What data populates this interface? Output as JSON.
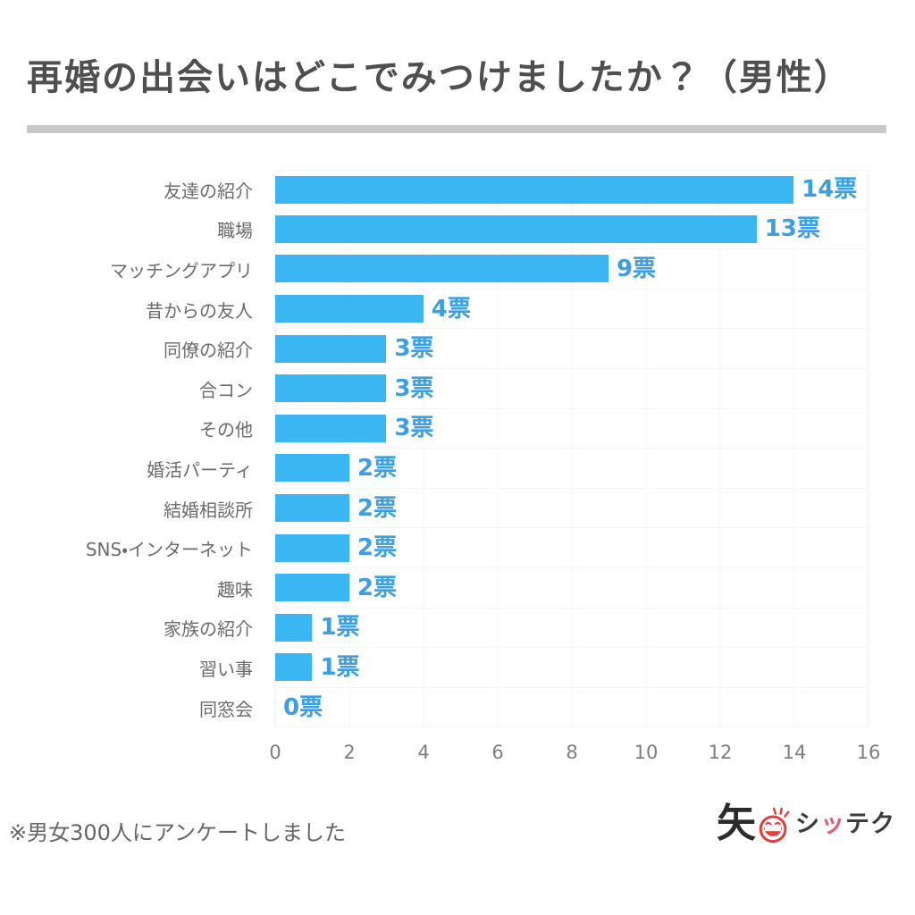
{
  "title": "再婚の出会いはどこでみつけましたか？（男性）",
  "chart_data": {
    "type": "bar",
    "orientation": "horizontal",
    "title": "再婚の出会いはどこでみつけましたか？（男性）",
    "unit": "票",
    "categories": [
      "友達の紹介",
      "職場",
      "マッチングアプリ",
      "昔からの友人",
      "同僚の紹介",
      "合コン",
      "その他",
      "婚活パーティ",
      "結婚相談所",
      "SNS・インターネット",
      "趣味",
      "家族の紹介",
      "習い事",
      "同窓会"
    ],
    "values": [
      14,
      13,
      9,
      4,
      3,
      3,
      3,
      2,
      2,
      2,
      2,
      1,
      1,
      0
    ],
    "value_labels": [
      "14票",
      "13票",
      "9票",
      "4票",
      "3票",
      "3票",
      "3票",
      "2票",
      "2票",
      "2票",
      "2票",
      "1票",
      "1票",
      "0票"
    ],
    "xticks": [
      0,
      2,
      4,
      6,
      8,
      10,
      12,
      14,
      16
    ],
    "xlim": [
      0,
      16
    ],
    "xlabel": "",
    "ylabel": "",
    "grid": true,
    "legend": false,
    "bar_color": "#3ab6f3",
    "value_label_color": "#3d9fe3",
    "category_label_color": "#6b6b6b",
    "tick_label_color": "#7d7d7d"
  },
  "footer": {
    "note": "※男女300人にアンケートしました"
  },
  "logo": {
    "kanji": "矢",
    "face_icon": "laughing-face-icon",
    "text_parts": {
      "p1": "シ",
      "p2": "ッ",
      "p3": "テク"
    },
    "brand_red": "#e0413f",
    "accent_pink": "#e25a6e",
    "text_color": "#3c3c3c"
  }
}
